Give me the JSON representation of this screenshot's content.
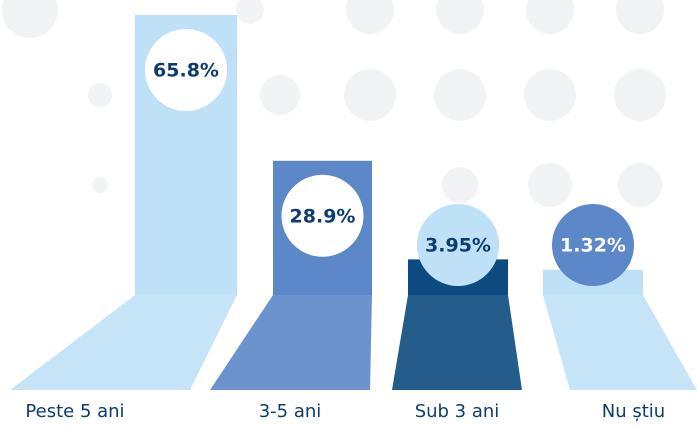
{
  "chart_data": {
    "type": "bar",
    "categories": [
      "Peste 5 ani",
      "3-5 ani",
      "Sub 3 ani",
      "Nu știu"
    ],
    "values": [
      65.8,
      28.9,
      3.95,
      1.32
    ],
    "value_labels": [
      "65.8%",
      "28.9%",
      "3.95%",
      "1.32%"
    ],
    "colors": [
      "#bfe1f7",
      "#5c87c9",
      "#0c4a80",
      "#bfe1f7"
    ]
  }
}
